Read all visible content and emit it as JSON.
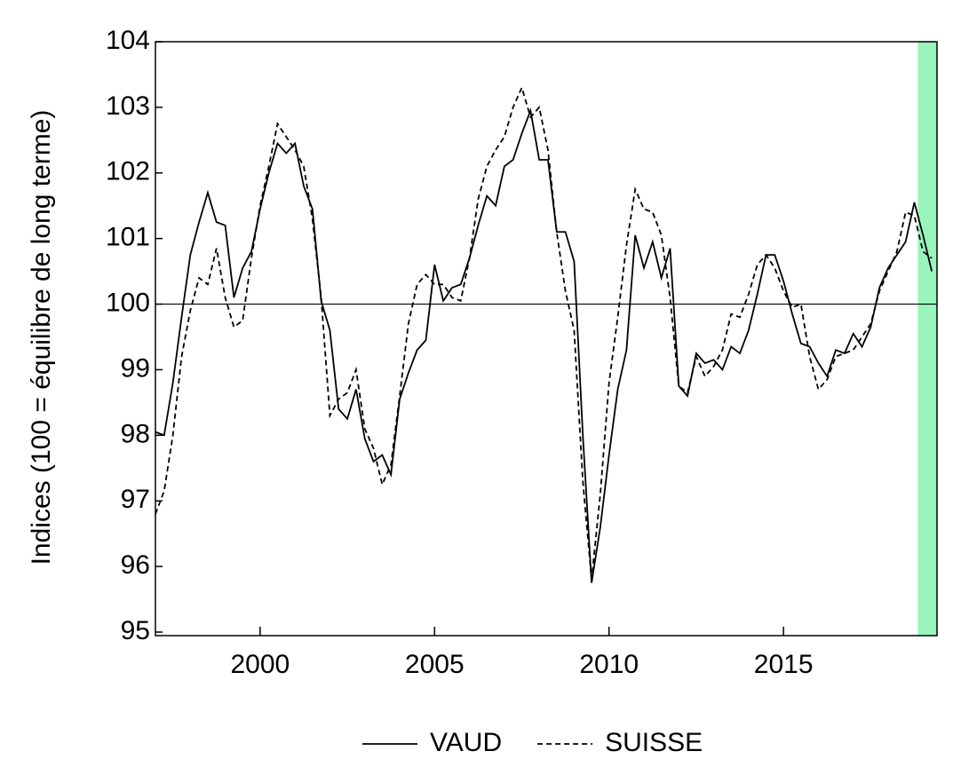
{
  "chart_data": {
    "type": "line",
    "ylabel": "Indices (100 = équilibre de long terme)",
    "x": [
      1997,
      1997.25,
      1997.5,
      1997.75,
      1998,
      1998.25,
      1998.5,
      1998.75,
      1999,
      1999.25,
      1999.5,
      1999.75,
      2000,
      2000.25,
      2000.5,
      2000.75,
      2001,
      2001.25,
      2001.5,
      2001.75,
      2002,
      2002.25,
      2002.5,
      2002.75,
      2003,
      2003.25,
      2003.5,
      2003.75,
      2004,
      2004.25,
      2004.5,
      2004.75,
      2005,
      2005.25,
      2005.5,
      2005.75,
      2006,
      2006.25,
      2006.5,
      2006.75,
      2007,
      2007.25,
      2007.5,
      2007.75,
      2008,
      2008.25,
      2008.5,
      2008.75,
      2009,
      2009.25,
      2009.5,
      2009.75,
      2010,
      2010.25,
      2010.5,
      2010.75,
      2011,
      2011.25,
      2011.5,
      2011.75,
      2012,
      2012.25,
      2012.5,
      2012.75,
      2013,
      2013.25,
      2013.5,
      2013.75,
      2014,
      2014.25,
      2014.5,
      2014.75,
      2015,
      2015.25,
      2015.5,
      2015.75,
      2016,
      2016.25,
      2016.5,
      2016.75,
      2017,
      2017.25,
      2017.5,
      2017.75,
      2018,
      2018.25,
      2018.5,
      2018.75,
      2019,
      2019.25
    ],
    "series": [
      {
        "name": "VAUD",
        "color": "#000000",
        "line_style": "solid",
        "values": [
          98.05,
          98.0,
          98.8,
          99.8,
          100.75,
          101.25,
          101.7,
          101.25,
          101.2,
          100.1,
          100.55,
          100.8,
          101.45,
          102.0,
          102.45,
          102.3,
          102.45,
          101.8,
          101.45,
          100.05,
          99.6,
          98.4,
          98.25,
          98.7,
          97.95,
          97.6,
          97.7,
          97.4,
          98.55,
          98.95,
          99.3,
          99.45,
          100.6,
          100.05,
          100.25,
          100.3,
          100.7,
          101.2,
          101.65,
          101.5,
          102.1,
          102.2,
          102.6,
          102.95,
          102.2,
          102.2,
          101.1,
          101.1,
          100.65,
          98.0,
          95.75,
          96.6,
          97.7,
          98.7,
          99.3,
          101.05,
          100.55,
          100.95,
          100.4,
          100.85,
          98.75,
          98.6,
          99.25,
          99.1,
          99.15,
          99.0,
          99.35,
          99.25,
          99.6,
          100.15,
          100.75,
          100.75,
          100.35,
          99.85,
          99.4,
          99.35,
          99.1,
          98.9,
          99.3,
          99.25,
          99.55,
          99.35,
          99.65,
          100.25,
          100.55,
          100.75,
          100.95,
          101.55,
          101.05,
          100.5
        ]
      },
      {
        "name": "SUISSE",
        "color": "#000000",
        "line_style": "dashed",
        "values": [
          96.8,
          97.15,
          98.0,
          99.2,
          99.9,
          100.4,
          100.3,
          100.85,
          100.1,
          99.65,
          99.75,
          100.7,
          101.5,
          102.1,
          102.75,
          102.55,
          102.35,
          102.1,
          101.3,
          100.1,
          98.3,
          98.55,
          98.65,
          99.0,
          98.1,
          97.8,
          97.25,
          97.55,
          98.6,
          99.7,
          100.3,
          100.45,
          100.3,
          100.3,
          100.1,
          100.05,
          100.7,
          101.6,
          102.1,
          102.35,
          102.55,
          103.0,
          103.3,
          102.85,
          103.0,
          102.35,
          101.1,
          100.2,
          99.6,
          97.3,
          95.8,
          97.1,
          98.8,
          99.8,
          100.9,
          101.75,
          101.45,
          101.4,
          101.05,
          100.1,
          98.75,
          98.65,
          99.2,
          98.9,
          99.05,
          99.3,
          99.85,
          99.8,
          100.15,
          100.6,
          100.75,
          100.55,
          100.2,
          99.95,
          100.0,
          99.2,
          98.7,
          98.85,
          99.2,
          99.25,
          99.3,
          99.5,
          99.7,
          100.2,
          100.5,
          100.8,
          101.4,
          101.35,
          100.8,
          100.7
        ]
      }
    ],
    "xlim": [
      1997,
      2019.4
    ],
    "xticks": [
      2000,
      2005,
      2010,
      2015
    ],
    "ylim": [
      95,
      104
    ],
    "yticks": [
      95,
      96,
      97,
      98,
      99,
      100,
      101,
      102,
      103,
      104
    ],
    "hline": 100,
    "shade": [
      2018.85,
      2019.4
    ],
    "shade_color": "#99f5bb",
    "legend": "bottom"
  }
}
